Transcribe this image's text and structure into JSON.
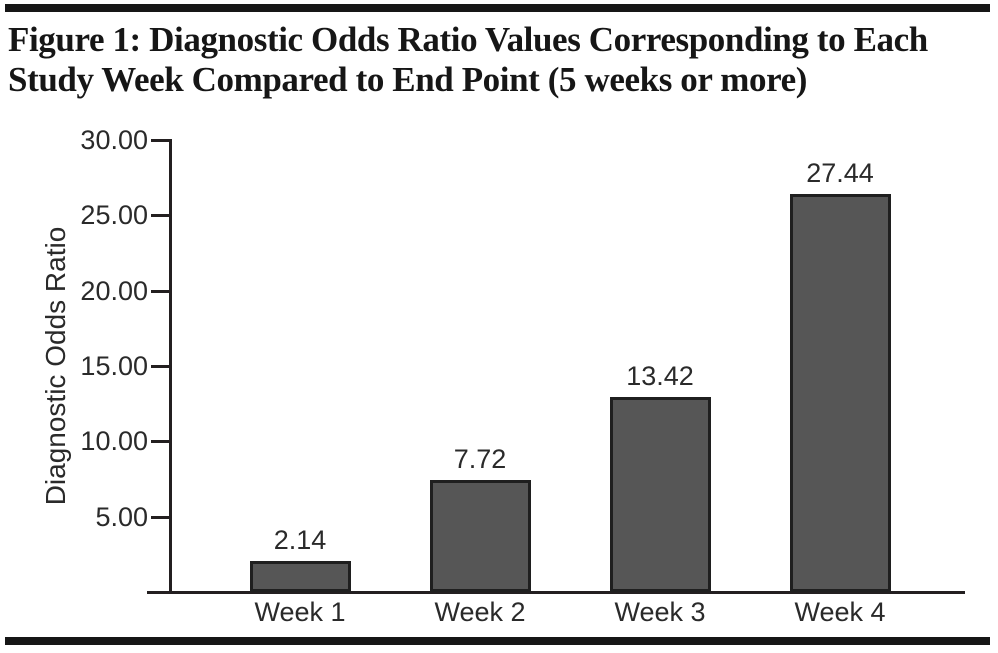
{
  "figure": {
    "title_line1": "Figure 1: Diagnostic Odds Ratio Values Corresponding to Each",
    "title_line2": "Study Week Compared to End Point (5 weeks or more)"
  },
  "chart_data": {
    "type": "bar",
    "title": "Figure 1: Diagnostic Odds Ratio Values Corresponding to Each Study Week Compared to End Point (5 weeks or more)",
    "categories": [
      "Week 1",
      "Week 2",
      "Week 3",
      "Week 4"
    ],
    "values": [
      2.14,
      7.72,
      13.42,
      27.44
    ],
    "value_labels": [
      "2.14",
      "7.72",
      "13.42",
      "27.44"
    ],
    "xlabel": "",
    "ylabel": "Diagnostic Odds Ratio",
    "ylim": [
      0,
      30
    ],
    "yticks": [
      30,
      25,
      20,
      15,
      10,
      5
    ],
    "ytick_labels": [
      "30.00",
      "25.00",
      "20.00",
      "15.00",
      "10.00",
      "5.00"
    ],
    "grid": false,
    "legend": "none",
    "bar_fill_color": "#565656",
    "bar_border_color": "#1f1f1f",
    "axis_color": "#231f20",
    "text_color": "#2a2a2a",
    "rule_color": "#161616"
  }
}
